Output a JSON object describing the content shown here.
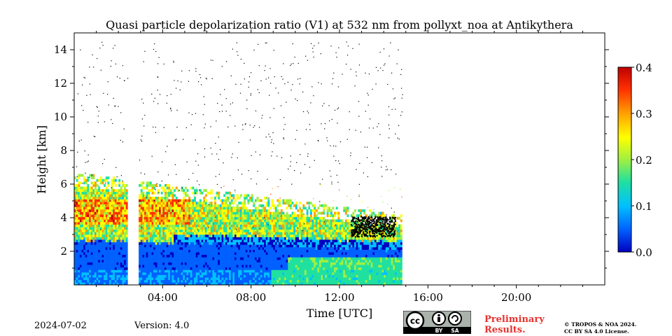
{
  "chart_data": {
    "type": "heatmap",
    "title": "Quasi particle depolarization ratio (V1) at 532 nm from pollyxt_noa at Antikythera",
    "xlabel": "Time [UTC]",
    "ylabel": "Height [km]",
    "xlim": [
      "00:00",
      "24:00"
    ],
    "ylim": [
      0,
      15
    ],
    "x_ticks": [
      "04:00",
      "08:00",
      "12:00",
      "16:00",
      "20:00"
    ],
    "y_ticks": [
      "2",
      "4",
      "6",
      "8",
      "10",
      "12",
      "14"
    ],
    "colorbar": {
      "range": [
        0.0,
        0.4
      ],
      "ticks": [
        "0.0",
        "0.1",
        "0.2",
        "0.3",
        "0.4"
      ],
      "colormap": "jet",
      "colors": [
        "#0000c0",
        "#0060ff",
        "#00c0ff",
        "#20e0a0",
        "#a0f040",
        "#ffff00",
        "#ffa000",
        "#ff3000",
        "#c00000"
      ]
    },
    "data_extent": {
      "start": "00:00",
      "end": "14:50"
    },
    "gaps": [
      {
        "start": "02:25",
        "end": "02:55"
      }
    ],
    "layers": [
      {
        "name": "boundary layer",
        "height_range_km": [
          0,
          3
        ],
        "value": 0.05
      },
      {
        "name": "elevated layer",
        "height_range_km": [
          3,
          6.5
        ],
        "value": 0.25
      },
      {
        "name": "cloud base",
        "height_range_km": [
          2.8,
          3.5
        ],
        "time_range": [
          "12:30",
          "14:30"
        ],
        "value": "cloud (black)"
      }
    ]
  },
  "footer": {
    "date": "2024-07-02",
    "version": "Version: 4.0",
    "preliminary_line1": "Preliminary",
    "preliminary_line2": "Results.",
    "copyright_line1": "© TROPOS & NOA 2024.",
    "copyright_line2": "CC BY SA 4.0 License.",
    "license_badge": {
      "cc": "cc",
      "by": "BY",
      "sa": "SA"
    }
  }
}
